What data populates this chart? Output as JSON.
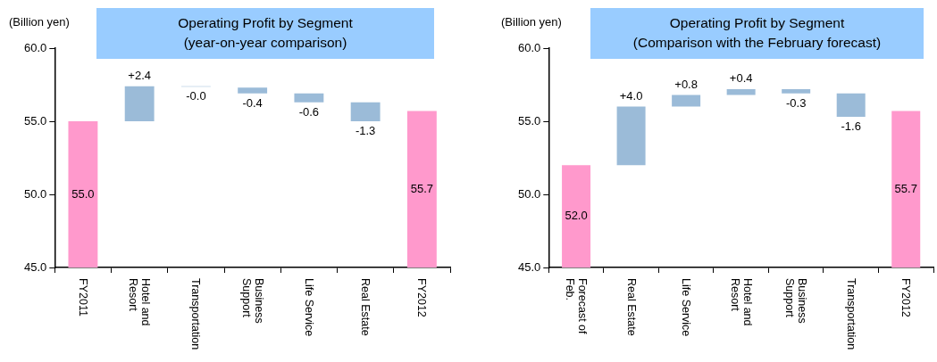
{
  "chart_data": [
    {
      "type": "bar",
      "title": "Operating Profit by Segment",
      "subtitle": "(year-on-year comparison)",
      "ylabel": "(Billion yen)",
      "categories": [
        "FY2011",
        "Hotel and Resort",
        "Transportation",
        "Business Support",
        "Life Service",
        "Real Estate",
        "FY2012"
      ],
      "values": [
        55.0,
        2.4,
        -0.04,
        -0.4,
        -0.6,
        -1.3,
        55.7
      ],
      "base": [
        null,
        55.0,
        57.4,
        57.3,
        56.9,
        56.3,
        null
      ],
      "colors": [
        "#ff99cc",
        "#9bbbd8",
        "#9bbbd8",
        "#9bbbd8",
        "#9bbbd8",
        "#9bbbd8",
        "#ff99cc"
      ],
      "value_labels": [
        "55.0",
        "+2.4",
        "-0.0",
        "-0.4",
        "-0.6",
        "-1.3",
        "55.7"
      ],
      "ylim": [
        45,
        60
      ],
      "yticks": [
        {
          "value": 45,
          "label": "45.0"
        },
        {
          "value": 50,
          "label": "50.0"
        },
        {
          "value": 55,
          "label": "55.0"
        },
        {
          "value": 60,
          "label": "60.0"
        }
      ],
      "grid": false
    },
    {
      "type": "bar",
      "title": "Operating Profit by Segment",
      "subtitle": "(Comparison with the February forecast)",
      "ylabel": "(Billion yen)",
      "categories": [
        "Forecast of Feb.",
        "Real Estate",
        "Life Service",
        "Hotel and Resort",
        "Business Support",
        "Transportation",
        "FY2012"
      ],
      "values": [
        52.0,
        4.0,
        0.8,
        0.4,
        -0.3,
        -1.6,
        55.7
      ],
      "base": [
        null,
        52.0,
        56.0,
        56.8,
        57.2,
        56.9,
        null
      ],
      "colors": [
        "#ff99cc",
        "#9bbbd8",
        "#9bbbd8",
        "#9bbbd8",
        "#9bbbd8",
        "#9bbbd8",
        "#ff99cc"
      ],
      "value_labels": [
        "52.0",
        "+4.0",
        "+0.8",
        "+0.4",
        "-0.3",
        "-1.6",
        "55.7"
      ],
      "ylim": [
        45,
        60
      ],
      "yticks": [
        {
          "value": 45,
          "label": "45.0"
        },
        {
          "value": 50,
          "label": "50.0"
        },
        {
          "value": 55,
          "label": "55.0"
        },
        {
          "value": 60,
          "label": "60.0"
        }
      ],
      "grid": false
    }
  ]
}
